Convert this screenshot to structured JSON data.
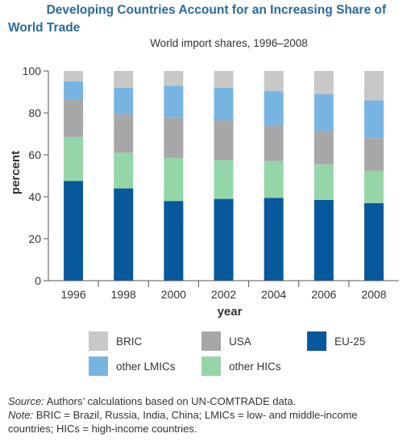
{
  "title_line1": "Developing Countries Account for an Increasing Share of",
  "title_line2": "World Trade",
  "colors": {
    "BRIC": "#c8c8c8",
    "USA": "#a7a7aa",
    "EU-25": "#08589c",
    "other LMICs": "#78b4e2",
    "other HICs": "#95d6a8",
    "axis": "#555555",
    "title": "#2a6a9e"
  },
  "chart_data": {
    "type": "bar",
    "stacked": true,
    "subtitle": "World import shares, 1996–2008",
    "xlabel": "year",
    "ylabel": "percent",
    "ylim": [
      0,
      100
    ],
    "yticks": [
      0,
      20,
      40,
      60,
      80,
      100
    ],
    "categories": [
      "1996",
      "1998",
      "2000",
      "2002",
      "2004",
      "2006",
      "2008"
    ],
    "series": [
      {
        "name": "EU-25",
        "values": [
          47.5,
          44,
          38,
          39,
          39.5,
          38.5,
          37
        ]
      },
      {
        "name": "other HICs",
        "values": [
          21,
          17,
          20.5,
          18.5,
          17.5,
          17,
          15.5
        ]
      },
      {
        "name": "USA",
        "values": [
          18,
          18.5,
          19.5,
          19,
          17,
          16,
          15.5
        ]
      },
      {
        "name": "other LMICs",
        "values": [
          8.5,
          12.5,
          15,
          15.5,
          16.5,
          17.5,
          18
        ]
      },
      {
        "name": "BRIC",
        "values": [
          5,
          8,
          7,
          8,
          9.5,
          11,
          14
        ]
      }
    ],
    "legend": {
      "placement": "bottom",
      "entries": [
        "BRIC",
        "USA",
        "EU-25",
        "other LMICs",
        "other HICs"
      ]
    }
  },
  "footnote": {
    "source_label": "Source:",
    "source_text": " Authors’ calculations based on UN-COMTRADE data.",
    "note_label": "Note:",
    "note_text": " BRIC = Brazil, Russia, India, China; LMICs = low- and middle-income countries; HICs = high-income countries."
  }
}
